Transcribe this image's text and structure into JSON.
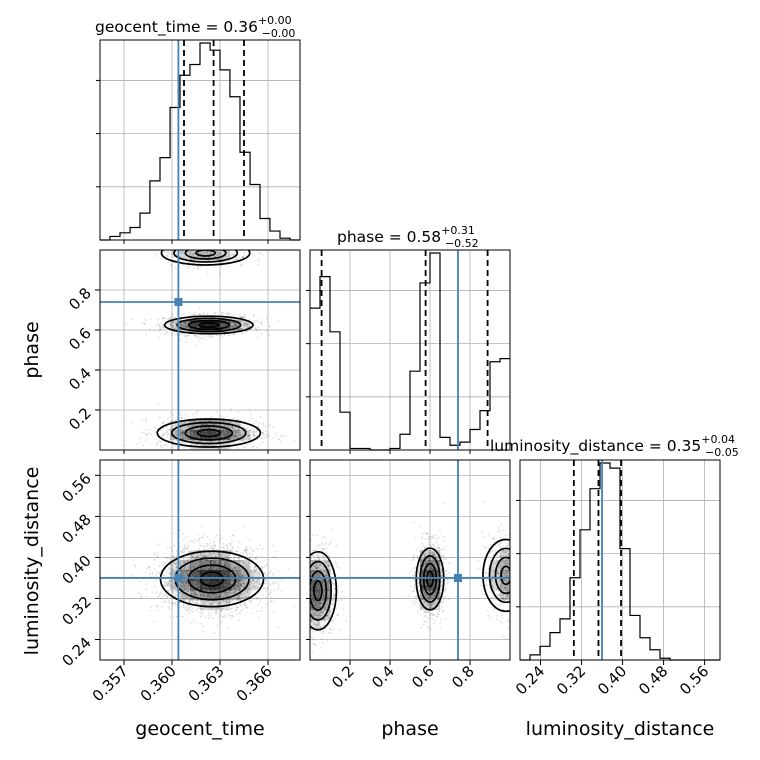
{
  "colors": {
    "truth": "#4682b4",
    "line": "#000000",
    "grid": "#b0b0b0",
    "density": "#000000"
  },
  "chart_data": {
    "type": "corner",
    "parameters": [
      "geocent_time",
      "phase",
      "luminosity_distance"
    ],
    "truths": {
      "geocent_time": 0.3604,
      "phase": 0.74,
      "luminosity_distance": 0.36
    },
    "axes": {
      "geocent_time": {
        "label": "geocent_time",
        "range": [
          0.3555,
          0.368
        ],
        "ticks": [
          0.357,
          0.36,
          0.363,
          0.366
        ],
        "tick_labels": [
          "0.357",
          "0.360",
          "0.363",
          "0.366"
        ]
      },
      "phase": {
        "label": "phase",
        "range": [
          0.0,
          1.0
        ],
        "ticks": [
          0.2,
          0.4,
          0.6,
          0.8
        ],
        "tick_labels": [
          "0.2",
          "0.4",
          "0.6",
          "0.8"
        ]
      },
      "luminosity_distance": {
        "label": "luminosity_distance",
        "range": [
          0.2,
          0.59
        ],
        "ticks": [
          0.24,
          0.32,
          0.4,
          0.48,
          0.56
        ],
        "tick_labels": [
          "0.24",
          "0.32",
          "0.40",
          "0.48",
          "0.56"
        ]
      }
    },
    "titles": {
      "geocent_time": {
        "prefix": "geocent_time = 0.36",
        "plus": "+0.00",
        "minus": "−0.00"
      },
      "phase": {
        "prefix": "phase = 0.58",
        "plus": "+0.31",
        "minus": "−0.52"
      },
      "luminosity_distance": {
        "prefix": "luminosity_distance = 0.35",
        "plus": "+0.04",
        "minus": "−0.05"
      }
    },
    "marginals": {
      "geocent_time": {
        "bin_edges": [
          0.3555,
          0.35612,
          0.35675,
          0.35738,
          0.358,
          0.35862,
          0.35925,
          0.35988,
          0.3605,
          0.36112,
          0.36175,
          0.36238,
          0.363,
          0.36362,
          0.36425,
          0.36488,
          0.3655,
          0.36612,
          0.36675,
          0.36738,
          0.368
        ],
        "counts": [
          0,
          2,
          4,
          7,
          15,
          33,
          46,
          74,
          92,
          98,
          110,
          106,
          95,
          80,
          49,
          31,
          12,
          5,
          1,
          0
        ],
        "quantiles": [
          0.36075,
          0.3626,
          0.3645
        ]
      },
      "phase": {
        "bin_edges": [
          0.0,
          0.05,
          0.1,
          0.15,
          0.2,
          0.25,
          0.3,
          0.35,
          0.4,
          0.45,
          0.5,
          0.55,
          0.6,
          0.65,
          0.7,
          0.75,
          0.8,
          0.85,
          0.9,
          0.95,
          1.0
        ],
        "counts": [
          90,
          110,
          75,
          24,
          1,
          1,
          0,
          0,
          1,
          10,
          50,
          106,
          125,
          8,
          3,
          5,
          13,
          25,
          56,
          58
        ],
        "quantiles": [
          0.058,
          0.578,
          0.888
        ]
      },
      "luminosity_distance": {
        "bin_edges": [
          0.2,
          0.2195,
          0.239,
          0.2585,
          0.278,
          0.2975,
          0.317,
          0.3365,
          0.356,
          0.3755,
          0.395,
          0.4145,
          0.434,
          0.4535,
          0.473,
          0.4925,
          0.512,
          0.5315,
          0.551,
          0.5705,
          0.59
        ],
        "counts": [
          0,
          3,
          8,
          16,
          24,
          48,
          76,
          100,
          115,
          112,
          65,
          26,
          13,
          6,
          1,
          0,
          0,
          0,
          0,
          0
        ],
        "quantiles": [
          0.305,
          0.353,
          0.397
        ]
      }
    },
    "contour_levels_sigma": [
      0.5,
      1.0,
      1.5,
      2.0
    ],
    "joint_modes": {
      "phase_vs_geocent_time": [
        {
          "x": 0.3623,
          "y": 0.625,
          "sx": 0.0012,
          "sy": 0.022,
          "w": 0.45
        },
        {
          "x": 0.3623,
          "y": 0.085,
          "sx": 0.0014,
          "sy": 0.035,
          "w": 0.4
        },
        {
          "x": 0.3621,
          "y": 0.985,
          "sx": 0.0012,
          "sy": 0.03,
          "w": 0.15
        }
      ],
      "luminosity_distance_vs_geocent_time": [
        {
          "x": 0.3625,
          "y": 0.358,
          "sx": 0.0014,
          "sy": 0.027,
          "w": 1.0
        }
      ],
      "luminosity_distance_vs_phase": [
        {
          "x": 0.6,
          "y": 0.358,
          "sx": 0.03,
          "sy": 0.03,
          "w": 0.45
        },
        {
          "x": 0.04,
          "y": 0.335,
          "sx": 0.04,
          "sy": 0.038,
          "w": 0.35
        },
        {
          "x": 0.98,
          "y": 0.365,
          "sx": 0.05,
          "sy": 0.035,
          "w": 0.2
        }
      ]
    }
  }
}
